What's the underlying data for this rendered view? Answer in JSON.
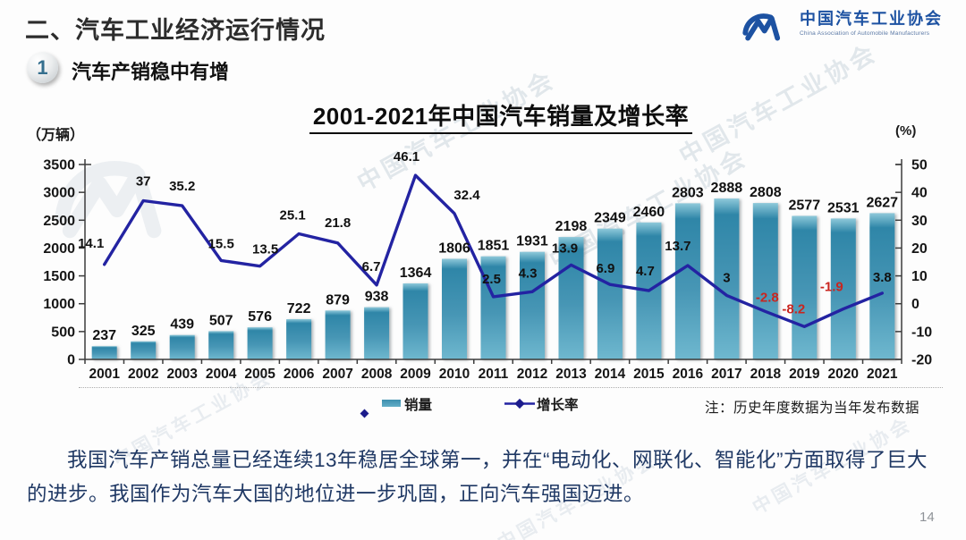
{
  "slide": {
    "section_title": "二、汽车工业经济运行情况",
    "badge_number": "1",
    "subtitle": "汽车产销稳中有增",
    "logo": {
      "title": "中国汽车工业协会",
      "subtitle": "China Association of Automobile Manufacturers"
    },
    "watermark_text": "中国汽车工业协会",
    "paragraph": "我国汽车产销总量已经连续13年稳居全球第一，并在“电动化、网联化、智能化”方面取得了巨大的进步。我国作为汽车大国的地位进一步巩固，正向汽车强国迈进。",
    "page_number": "14"
  },
  "chart_data": {
    "type": "bar",
    "subtype": "bar-line combo",
    "title": "2001-2021年中国汽车销量及增长率",
    "categories": [
      "2001",
      "2002",
      "2003",
      "2004",
      "2005",
      "2006",
      "2007",
      "2008",
      "2009",
      "2010",
      "2011",
      "2012",
      "2013",
      "2014",
      "2015",
      "2016",
      "2017",
      "2018",
      "2019",
      "2020",
      "2021"
    ],
    "series": [
      {
        "name": "销量",
        "type": "bar",
        "axis": "left",
        "unit": "万辆",
        "values": [
          237,
          325,
          439,
          507,
          576,
          722,
          879,
          938,
          1364,
          1806,
          1851,
          1931,
          2198,
          2349,
          2460,
          2803,
          2888,
          2808,
          2577,
          2531,
          2627
        ]
      },
      {
        "name": "增长率",
        "type": "line",
        "axis": "right",
        "unit": "%",
        "values": [
          14.1,
          37,
          35.2,
          15.5,
          13.5,
          25.1,
          21.8,
          6.7,
          46.1,
          32.4,
          2.5,
          4.3,
          13.9,
          6.9,
          4.7,
          13.7,
          3,
          -2.8,
          -8.2,
          -1.9,
          3.8
        ]
      }
    ],
    "left_axis": {
      "label": "（万辆）",
      "min": 0,
      "max": 3500,
      "step": 500
    },
    "right_axis": {
      "label": "(%)",
      "min": -20,
      "max": 50,
      "step": 10
    },
    "legend_position": "bottom",
    "grid": false,
    "note": "注：历史年度数据为当年发布数据",
    "colors": {
      "bar_top": "#8ec9da",
      "bar_dark": "#2f86a8",
      "bar_mid": "#4796b5",
      "bar_bottom": "#6fb8cf",
      "line": "#2323a2",
      "label": "#111111",
      "negative_label": "#c9251f",
      "axis": "#3c3c3c"
    }
  }
}
